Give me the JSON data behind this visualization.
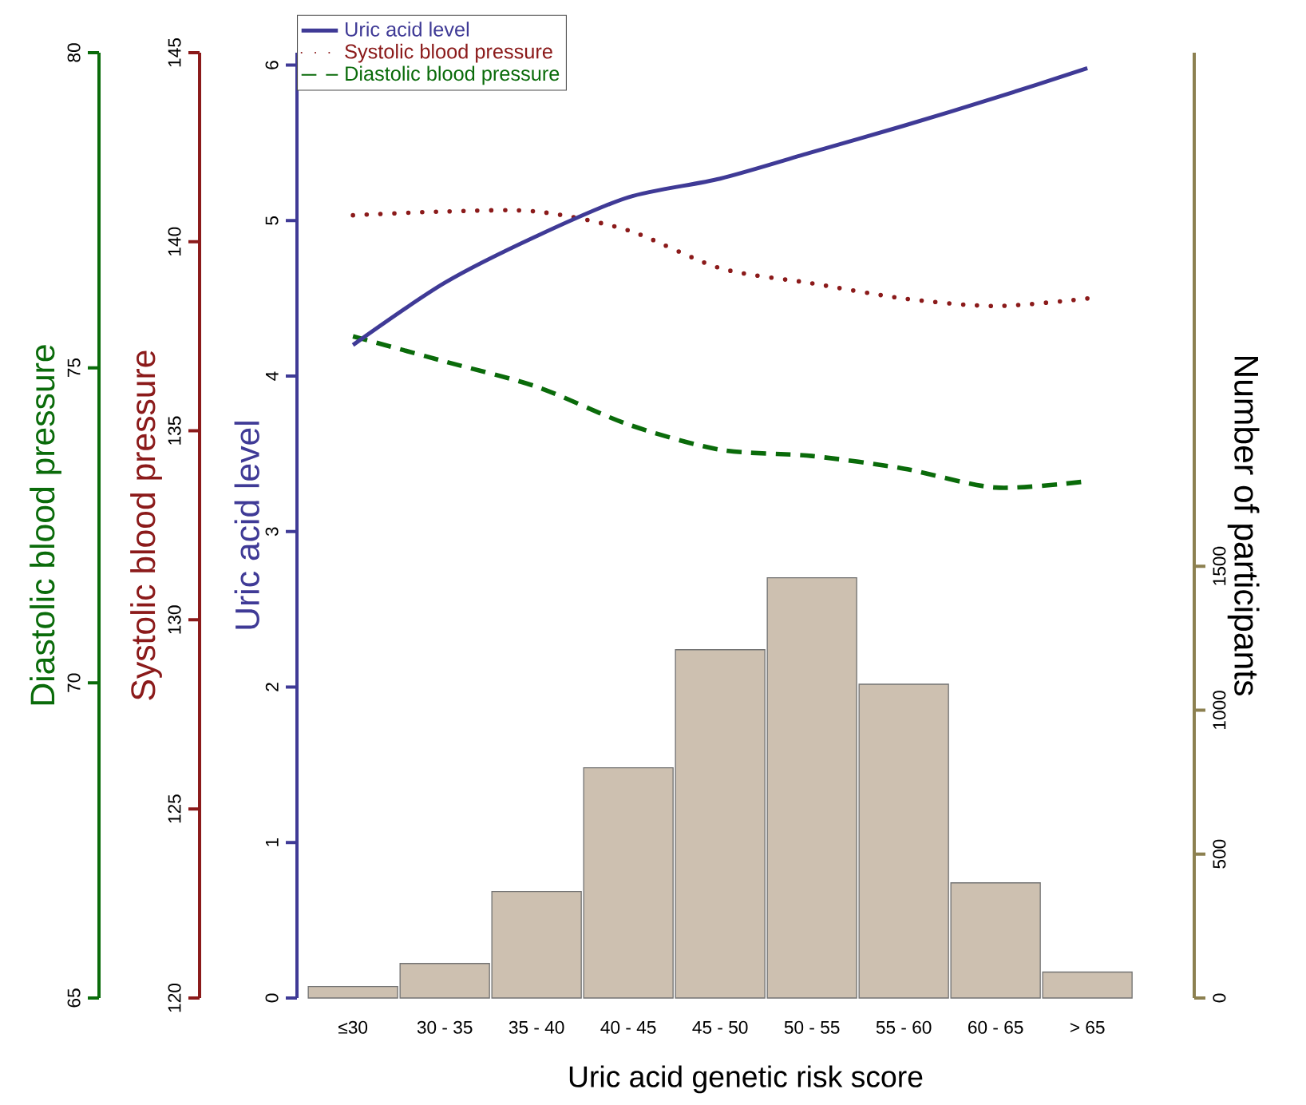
{
  "chart_data": [
    {
      "type": "line",
      "categories": [
        null,
        null,
        null,
        null,
        null,
        null,
        null,
        null,
        null
      ],
      "ylabel": "Uric acid level",
      "y2label": "Diastolic blood pressure",
      "y3label": "Systolic blood pressure",
      "ylim": [
        0,
        6.08
      ],
      "yticks": [
        0,
        1,
        2,
        3,
        4,
        5,
        6
      ],
      "y2lim": [
        65,
        80
      ],
      "y2ticks": [
        65,
        70,
        75,
        80
      ],
      "y3lim": [
        120,
        145
      ],
      "y3ticks": [
        120,
        125,
        130,
        135,
        140,
        145
      ],
      "legend": "top left",
      "series": [
        {
          "name": "Uric acid level",
          "axis": "y",
          "color": "#3f3a96",
          "line_style": "solid",
          "values": [
            4.2,
            4.6,
            4.9,
            5.15,
            5.27,
            5.44,
            5.61,
            5.79,
            5.98
          ]
        },
        {
          "name": "Systolic blood pressure",
          "axis": "y3",
          "color": "#8b1a1a",
          "line_style": "dotted",
          "values": [
            140.7,
            140.8,
            140.8,
            140.3,
            139.3,
            138.9,
            138.5,
            138.3,
            138.5
          ]
        },
        {
          "name": "Diastolic blood pressure",
          "axis": "y2",
          "color": "#0a6b0a",
          "line_style": "dashed",
          "values": [
            75.5,
            75.1,
            74.7,
            74.1,
            73.7,
            73.6,
            73.4,
            73.1,
            73.2
          ]
        }
      ]
    },
    {
      "type": "bar",
      "categories": [
        "≤30",
        "30 - 35",
        "35 - 40",
        "40 - 45",
        "45 - 50",
        "50 - 55",
        "55 - 60",
        "60 - 65",
        "> 65"
      ],
      "xlabel": "Uric acid genetic risk score",
      "ylabel": "Number of participants",
      "ylim": [
        0,
        3284
      ],
      "yticks": [
        0,
        500,
        1000,
        1500
      ],
      "color": "#cdc0b0",
      "values": [
        40,
        120,
        370,
        800,
        1210,
        1460,
        1090,
        400,
        90
      ]
    }
  ]
}
